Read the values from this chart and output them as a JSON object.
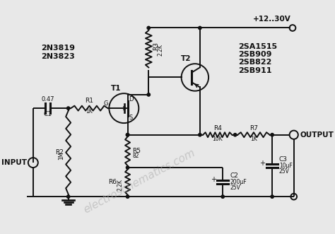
{
  "bg_color": "#e8e8e8",
  "line_color": "#111111",
  "text_color": "#111111",
  "lw": 1.4,
  "watermark": "electroschematics.com",
  "T1_label": "T1",
  "T2_label": "T2",
  "T1_type1": "2N3819",
  "T1_type2": "2N3823",
  "T2_type1": "2SA1515",
  "T2_type2": "2SB909",
  "T2_type3": "2SB822",
  "T2_type4": "2SB911",
  "supply": "+12..30V",
  "input_label": "INPUT",
  "output_label": "OUTPUT",
  "R1_val": "1K",
  "R2_val": "1M",
  "R3_val": "2.2K",
  "R4_val": "10K",
  "R5_val": "82",
  "R6_val": "2.2K",
  "R7_val": "1K",
  "C1_val": "0.47",
  "C2_val": "200μF",
  "C2_v": "25V",
  "C3_val": "10μF",
  "C3_v": "25V"
}
